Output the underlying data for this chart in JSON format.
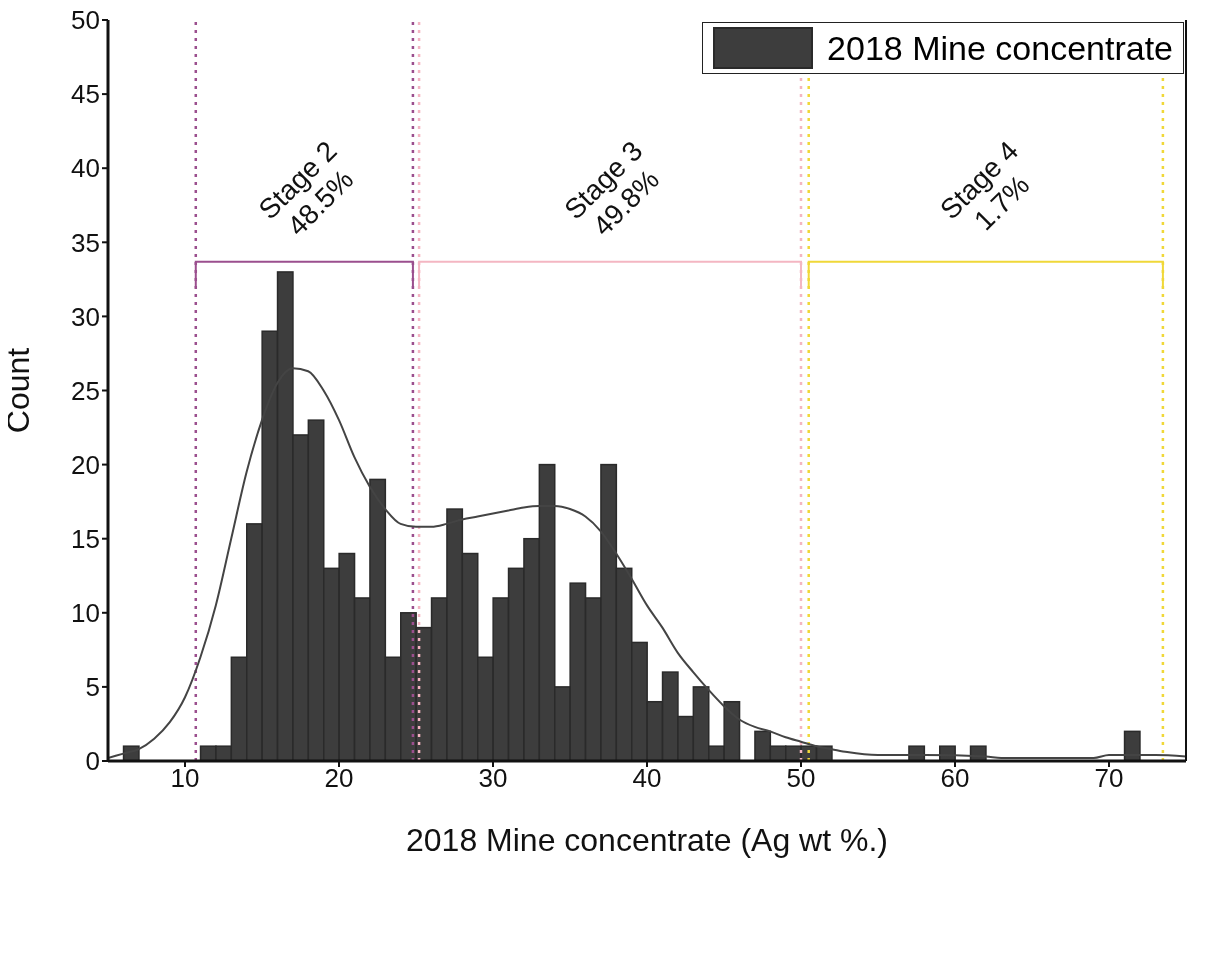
{
  "chart_data": {
    "type": "histogram",
    "xlabel": "2018 Mine concentrate (Ag wt %.)",
    "ylabel": "Count",
    "bins": [
      6,
      7,
      8,
      9,
      10,
      11,
      12,
      13,
      14,
      15,
      16,
      17,
      18,
      19,
      20,
      21,
      22,
      23,
      24,
      25,
      26,
      27,
      28,
      29,
      30,
      31,
      32,
      33,
      34,
      35,
      36,
      37,
      38,
      39,
      40,
      41,
      42,
      43,
      44,
      45,
      46,
      47,
      48,
      49,
      50,
      51,
      52,
      53,
      54,
      55,
      56,
      57,
      58,
      59,
      60,
      61,
      62,
      63,
      64,
      65,
      66,
      67,
      68,
      69,
      70,
      71,
      72
    ],
    "series": [
      {
        "name": "2018 Mine concentrate",
        "color": "#3d3d3d",
        "values": [
          1,
          0,
          0,
          0,
          0,
          1,
          1,
          7,
          16,
          29,
          33,
          22,
          23,
          13,
          14,
          11,
          19,
          7,
          10,
          9,
          11,
          17,
          14,
          7,
          11,
          13,
          15,
          20,
          5,
          12,
          11,
          20,
          13,
          8,
          4,
          6,
          3,
          5,
          1,
          4,
          0,
          2,
          1,
          1,
          1,
          1,
          0,
          0,
          0,
          0,
          0,
          1,
          0,
          1,
          0,
          1,
          0,
          0,
          0,
          0,
          0,
          0,
          0,
          0,
          0,
          2
        ]
      },
      {
        "type": "line",
        "color": "#444444",
        "x": [
          5,
          6,
          7,
          8,
          9,
          10,
          11,
          12,
          13,
          14,
          15,
          16,
          17,
          18,
          19,
          20,
          21,
          22,
          23,
          24,
          25,
          26,
          27,
          28,
          29,
          30,
          31,
          32,
          33,
          34,
          35,
          36,
          37,
          38,
          39,
          40,
          41,
          42,
          43,
          44,
          45,
          46,
          47,
          48,
          49,
          50,
          51,
          52,
          53,
          55,
          58,
          62,
          63,
          69,
          70,
          73,
          75
        ],
        "values": [
          0.2,
          0.5,
          0.8,
          1.5,
          2.6,
          4.3,
          7,
          10.5,
          15,
          19.5,
          23,
          25.5,
          26.5,
          26.3,
          25,
          23,
          20.5,
          18.5,
          17,
          16,
          15.8,
          15.8,
          16,
          16.3,
          16.5,
          16.7,
          16.9,
          17.1,
          17.2,
          17.2,
          17,
          16.5,
          15.5,
          14,
          12.3,
          10.5,
          9,
          7.3,
          6,
          4.8,
          3.7,
          2.8,
          2.3,
          2,
          1.6,
          1.3,
          1,
          0.8,
          0.6,
          0.4,
          0.4,
          0.3,
          0.2,
          0.2,
          0.4,
          0.4,
          0.3
        ]
      }
    ],
    "ref_lines": [
      {
        "axis": "x",
        "value": 10.7,
        "color": "#9b4f8e",
        "line_style": "dotted"
      },
      {
        "axis": "x",
        "value": 24.8,
        "color": "#9b4f8e",
        "line_style": "dotted"
      },
      {
        "axis": "x",
        "value": 25.2,
        "color": "#f4b6c2",
        "line_style": "dotted"
      },
      {
        "axis": "x",
        "value": 50,
        "color": "#f4b6c2",
        "line_style": "dotted"
      },
      {
        "axis": "x",
        "value": 50.5,
        "color": "#f0d838",
        "line_style": "dotted"
      },
      {
        "axis": "x",
        "value": 73.5,
        "color": "#f0d838",
        "line_style": "dotted"
      }
    ],
    "annotations": [
      "Stage 2\n48.5%",
      "Stage 3\n49.8%",
      "Stage 4\n1.7%"
    ],
    "xlim": [
      5,
      75
    ],
    "xticks": [
      10,
      20,
      30,
      40,
      50,
      60,
      70
    ],
    "ylim": [
      0,
      50
    ],
    "yticks": [
      0,
      5,
      10,
      15,
      20,
      25,
      30,
      35,
      40,
      45,
      50
    ],
    "grid": false,
    "legend": "top right"
  }
}
